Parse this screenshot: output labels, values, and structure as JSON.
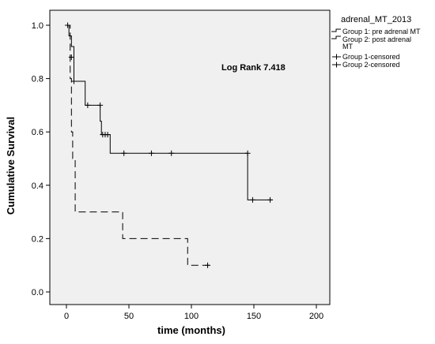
{
  "chart_data": {
    "type": "line",
    "subtype": "kaplan-meier",
    "xlabel": "time (months)",
    "ylabel": "Cumulative Survival",
    "xlim": [
      0,
      200
    ],
    "ylim": [
      0.0,
      1.0
    ],
    "x_ticks": [
      0,
      50,
      100,
      150,
      200
    ],
    "y_ticks": [
      0.0,
      0.2,
      0.4,
      0.6,
      0.8,
      1.0
    ],
    "x_tick_labels": [
      "0",
      "50",
      "100",
      "150",
      "200"
    ],
    "y_tick_labels": [
      "0.0",
      "0.2",
      "0.4",
      "0.6",
      "0.8",
      "1.0"
    ],
    "annotation": "Log Rank 7.418",
    "grid": false,
    "legend": {
      "title": "adrenal_MT_2013",
      "placement": "right",
      "entries": [
        {
          "label_lines": [
            "Group 1: pre adrenal MT"
          ]
        },
        {
          "label_lines": [
            "Group 2: post adrenal",
            "MT"
          ]
        },
        {
          "label_lines": [
            "Group 1-censored"
          ]
        },
        {
          "label_lines": [
            "Group 2-censored"
          ]
        }
      ]
    },
    "series": [
      {
        "name": "Group 1: pre adrenal MT",
        "line_style": "solid",
        "x": [
          0,
          2,
          4,
          6,
          15,
          27,
          28,
          35,
          145,
          165
        ],
        "y": [
          1.0,
          0.96,
          0.92,
          0.79,
          0.7,
          0.64,
          0.59,
          0.52,
          0.345,
          0.345
        ],
        "censored_x": [
          1,
          4,
          6,
          17,
          27,
          29,
          31,
          33,
          46,
          68,
          84,
          145,
          149,
          163
        ],
        "censored_y": [
          1.0,
          0.88,
          0.79,
          0.7,
          0.7,
          0.59,
          0.59,
          0.59,
          0.52,
          0.52,
          0.52,
          0.52,
          0.345,
          0.345
        ]
      },
      {
        "name": "Group 2: post adrenal MT",
        "line_style": "dashed",
        "x": [
          0,
          3,
          4,
          5,
          7,
          45,
          97,
          115
        ],
        "y": [
          1.0,
          0.8,
          0.6,
          0.5,
          0.3,
          0.2,
          0.1,
          0.1
        ],
        "censored_x": [
          113
        ],
        "censored_y": [
          0.1
        ]
      }
    ]
  }
}
